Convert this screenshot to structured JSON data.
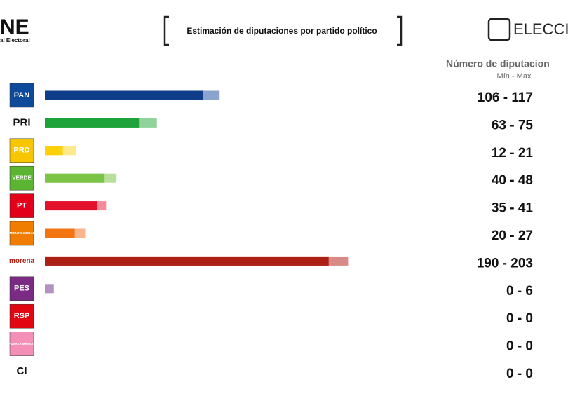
{
  "header": {
    "logo_main": "NE",
    "logo_sub": "al Electoral",
    "brand": "ELECCION"
  },
  "chart_data": {
    "type": "range-bar",
    "title": "Estimación de diputaciones por partido político",
    "value_header": "Número de diputacion",
    "subtitle": "Mín - Max",
    "categories": [
      "PAN",
      "PRI",
      "PRD",
      "VERDE",
      "PT",
      "MOVIMIENTO CIUDADANO",
      "morena",
      "PES",
      "RSP",
      "FUERZA MÉXICO",
      "CI"
    ],
    "logo_colors": [
      "#0d4a9a",
      "#ffffff",
      "#f7c600",
      "#5cb531",
      "#e2001a",
      "#f07c00",
      "#ffffff",
      "#7b2b83",
      "#e20613",
      "#f48fb8",
      "#ffffff"
    ],
    "series": [
      {
        "values": [
          106,
          63,
          12,
          40,
          35,
          20,
          190,
          0,
          0,
          0,
          0
        ],
        "colors": [
          "#0f3d8a",
          "#1da33a",
          "#fdd10a",
          "#7cc446",
          "#e3102b",
          "#f27512",
          "#ad2016",
          "#b292c1",
          "#e53a3a",
          "#f7a3c5",
          "#333333"
        ]
      },
      {
        "values": [
          117,
          75,
          21,
          48,
          41,
          27,
          203,
          6,
          0,
          0,
          0
        ],
        "colors": [
          "#8aa3cf",
          "#92d39c",
          "#fde98a",
          "#b8e09c",
          "#f48b98",
          "#f9b68a",
          "#d98a86",
          "#b292c1",
          "#f0a0a0",
          "#fbd0e1",
          "#aaaaaa"
        ]
      }
    ],
    "value_labels": [
      "106 - 117",
      "63 - 75",
      "12 - 21",
      "40 - 48",
      "35 - 41",
      "20 - 27",
      "190 - 203",
      "0 - 6",
      "0 - 0",
      "0 - 0",
      "0 - 0"
    ]
  }
}
